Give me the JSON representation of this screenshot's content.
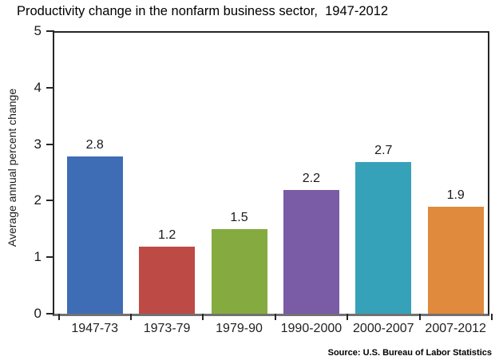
{
  "chart_data": {
    "type": "bar",
    "title": "Productivity change in the nonfarm business sector,  1947-2012",
    "ylabel": "Average annual percent change",
    "xlabel": "",
    "categories": [
      "1947-73",
      "1973-79",
      "1979-90",
      "1990-2000",
      "2000-2007",
      "2007-2012"
    ],
    "values": [
      2.8,
      1.2,
      1.5,
      2.2,
      2.7,
      1.9
    ],
    "value_labels": [
      "2.8",
      "1.2",
      "1.5",
      "2.2",
      "2.7",
      "1.9"
    ],
    "bar_colors": [
      "#3E6DB5",
      "#BE4A46",
      "#85AB40",
      "#7A5BA5",
      "#36A2BA",
      "#DF8A3C"
    ],
    "ylim": [
      0,
      5
    ],
    "yticks": [
      0,
      1,
      2,
      3,
      4,
      5
    ],
    "grid": false,
    "legend": false,
    "source": "Source: U.S. Bureau of Labor Statistics"
  }
}
